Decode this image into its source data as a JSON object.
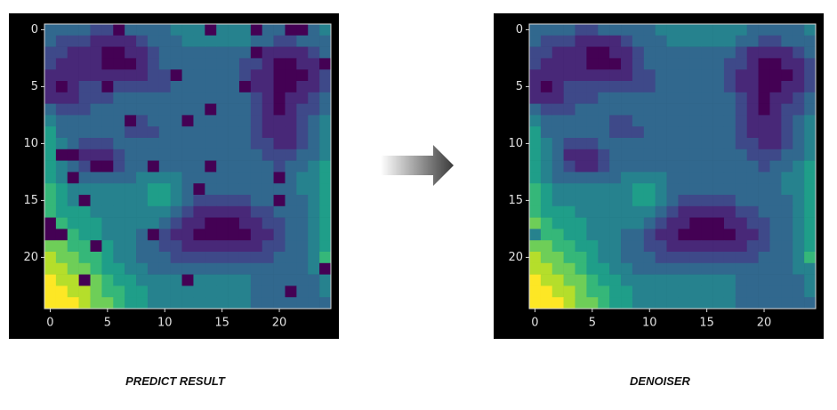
{
  "chart_data": [
    {
      "type": "heatmap",
      "caption": "PREDICT RESULT",
      "colormap": "viridis",
      "zlim": [
        0,
        9
      ],
      "xlim": [
        -0.5,
        24.5
      ],
      "ylim": [
        24.5,
        -0.5
      ],
      "xticks": [
        0,
        5,
        10,
        15,
        20
      ],
      "yticks": [
        0,
        5,
        10,
        15,
        20
      ],
      "z": [
        [
          3,
          3,
          3,
          3,
          2,
          2,
          0,
          3,
          3,
          3,
          3,
          4,
          4,
          4,
          0,
          4,
          4,
          4,
          0,
          3,
          3,
          0,
          0,
          3,
          4
        ],
        [
          3,
          2,
          2,
          2,
          1,
          1,
          1,
          1,
          2,
          3,
          3,
          3,
          4,
          4,
          4,
          4,
          4,
          4,
          3,
          3,
          2,
          2,
          3,
          3,
          3
        ],
        [
          2,
          2,
          1,
          1,
          1,
          0,
          0,
          1,
          1,
          2,
          3,
          3,
          3,
          3,
          3,
          3,
          3,
          3,
          0,
          1,
          1,
          1,
          1,
          2,
          3
        ],
        [
          2,
          1,
          1,
          1,
          1,
          0,
          0,
          0,
          1,
          2,
          3,
          3,
          3,
          3,
          3,
          3,
          3,
          2,
          2,
          1,
          0,
          0,
          1,
          1,
          0
        ],
        [
          1,
          1,
          1,
          1,
          1,
          1,
          1,
          1,
          1,
          2,
          2,
          0,
          3,
          3,
          3,
          3,
          3,
          2,
          1,
          1,
          0,
          0,
          0,
          1,
          2
        ],
        [
          1,
          0,
          1,
          2,
          2,
          0,
          2,
          2,
          2,
          2,
          2,
          3,
          3,
          3,
          3,
          3,
          3,
          0,
          1,
          1,
          0,
          0,
          1,
          1,
          2
        ],
        [
          1,
          1,
          1,
          2,
          2,
          2,
          3,
          3,
          3,
          3,
          3,
          3,
          3,
          3,
          3,
          3,
          3,
          3,
          2,
          1,
          0,
          1,
          1,
          2,
          3
        ],
        [
          3,
          2,
          2,
          2,
          3,
          3,
          3,
          3,
          3,
          3,
          3,
          3,
          3,
          3,
          0,
          3,
          3,
          3,
          2,
          1,
          0,
          1,
          2,
          2,
          3
        ],
        [
          4,
          3,
          3,
          3,
          3,
          3,
          3,
          0,
          2,
          3,
          3,
          3,
          0,
          3,
          3,
          3,
          3,
          3,
          2,
          1,
          1,
          1,
          2,
          3,
          4
        ],
        [
          5,
          3,
          3,
          3,
          3,
          3,
          3,
          2,
          2,
          2,
          3,
          3,
          3,
          3,
          3,
          3,
          3,
          3,
          2,
          1,
          1,
          1,
          2,
          3,
          4
        ],
        [
          5,
          4,
          3,
          2,
          2,
          2,
          3,
          3,
          3,
          3,
          3,
          3,
          3,
          3,
          3,
          3,
          3,
          3,
          2,
          2,
          1,
          1,
          2,
          3,
          4
        ],
        [
          5,
          0,
          0,
          1,
          1,
          1,
          2,
          3,
          3,
          3,
          3,
          3,
          3,
          3,
          3,
          3,
          3,
          3,
          3,
          2,
          2,
          2,
          3,
          3,
          4
        ],
        [
          5,
          4,
          3,
          2,
          0,
          0,
          2,
          3,
          3,
          0,
          3,
          3,
          3,
          3,
          0,
          3,
          3,
          3,
          3,
          3,
          2,
          3,
          3,
          4,
          5
        ],
        [
          5,
          4,
          0,
          3,
          3,
          3,
          3,
          3,
          4,
          4,
          4,
          4,
          3,
          3,
          3,
          3,
          3,
          3,
          3,
          3,
          0,
          3,
          4,
          4,
          5
        ],
        [
          6,
          5,
          4,
          4,
          4,
          4,
          4,
          4,
          4,
          5,
          5,
          4,
          3,
          0,
          3,
          3,
          3,
          3,
          3,
          3,
          3,
          3,
          4,
          4,
          5
        ],
        [
          6,
          5,
          4,
          0,
          4,
          4,
          4,
          4,
          4,
          5,
          5,
          4,
          3,
          2,
          2,
          2,
          2,
          2,
          3,
          3,
          0,
          3,
          3,
          4,
          5
        ],
        [
          6,
          5,
          5,
          5,
          4,
          4,
          4,
          4,
          4,
          4,
          4,
          3,
          2,
          1,
          1,
          1,
          1,
          1,
          2,
          2,
          3,
          3,
          3,
          4,
          5
        ],
        [
          0,
          6,
          5,
          5,
          5,
          4,
          4,
          4,
          4,
          4,
          3,
          2,
          1,
          1,
          0,
          0,
          0,
          1,
          1,
          2,
          2,
          3,
          3,
          4,
          5
        ],
        [
          0,
          0,
          6,
          5,
          5,
          4,
          4,
          4,
          3,
          0,
          2,
          1,
          1,
          0,
          0,
          0,
          0,
          0,
          1,
          1,
          2,
          3,
          3,
          4,
          5
        ],
        [
          7,
          7,
          6,
          6,
          0,
          5,
          4,
          4,
          3,
          3,
          2,
          2,
          1,
          1,
          1,
          1,
          1,
          1,
          1,
          2,
          2,
          3,
          3,
          4,
          5
        ],
        [
          8,
          7,
          7,
          6,
          6,
          5,
          4,
          4,
          3,
          3,
          3,
          2,
          2,
          2,
          2,
          2,
          2,
          2,
          2,
          2,
          3,
          3,
          3,
          4,
          6
        ],
        [
          8,
          8,
          7,
          7,
          6,
          5,
          5,
          4,
          4,
          3,
          3,
          3,
          3,
          3,
          3,
          3,
          3,
          3,
          3,
          3,
          3,
          3,
          3,
          4,
          0
        ],
        [
          9,
          8,
          8,
          0,
          7,
          6,
          5,
          5,
          4,
          4,
          4,
          4,
          0,
          4,
          4,
          4,
          4,
          4,
          3,
          3,
          3,
          3,
          3,
          3,
          4
        ],
        [
          9,
          9,
          8,
          8,
          7,
          6,
          6,
          5,
          5,
          4,
          4,
          4,
          4,
          4,
          4,
          4,
          4,
          4,
          3,
          3,
          3,
          0,
          3,
          3,
          4
        ],
        [
          9,
          9,
          9,
          8,
          7,
          7,
          6,
          5,
          5,
          4,
          4,
          4,
          4,
          4,
          4,
          4,
          4,
          4,
          3,
          3,
          3,
          3,
          3,
          3,
          3
        ]
      ]
    },
    {
      "type": "heatmap",
      "caption": "DENOISER",
      "colormap": "viridis",
      "zlim": [
        0,
        9
      ],
      "xlim": [
        -0.5,
        24.5
      ],
      "ylim": [
        24.5,
        -0.5
      ],
      "xticks": [
        0,
        5,
        10,
        15,
        20
      ],
      "yticks": [
        0,
        5,
        10,
        15,
        20
      ],
      "z": [
        [
          3,
          3,
          3,
          3,
          2,
          2,
          3,
          3,
          3,
          3,
          3,
          4,
          4,
          4,
          4,
          4,
          4,
          4,
          4,
          3,
          3,
          3,
          3,
          3,
          4
        ],
        [
          3,
          2,
          2,
          2,
          1,
          1,
          1,
          1,
          2,
          3,
          3,
          3,
          4,
          4,
          4,
          4,
          4,
          4,
          3,
          3,
          2,
          2,
          3,
          3,
          3
        ],
        [
          2,
          2,
          1,
          1,
          1,
          0,
          0,
          1,
          1,
          2,
          3,
          3,
          3,
          3,
          3,
          3,
          3,
          3,
          2,
          1,
          1,
          1,
          1,
          2,
          3
        ],
        [
          2,
          1,
          1,
          1,
          1,
          0,
          0,
          0,
          1,
          2,
          3,
          3,
          3,
          3,
          3,
          3,
          3,
          2,
          2,
          1,
          0,
          0,
          1,
          1,
          2
        ],
        [
          1,
          1,
          1,
          1,
          1,
          1,
          1,
          1,
          1,
          2,
          2,
          3,
          3,
          3,
          3,
          3,
          3,
          2,
          1,
          1,
          0,
          0,
          0,
          1,
          2
        ],
        [
          1,
          0,
          1,
          2,
          2,
          2,
          2,
          2,
          2,
          2,
          2,
          3,
          3,
          3,
          3,
          3,
          3,
          2,
          1,
          1,
          0,
          0,
          1,
          1,
          2
        ],
        [
          1,
          1,
          1,
          2,
          2,
          2,
          3,
          3,
          3,
          3,
          3,
          3,
          3,
          3,
          3,
          3,
          3,
          3,
          2,
          1,
          0,
          1,
          1,
          2,
          3
        ],
        [
          3,
          2,
          2,
          2,
          3,
          3,
          3,
          3,
          3,
          3,
          3,
          3,
          3,
          3,
          3,
          3,
          3,
          3,
          2,
          1,
          0,
          1,
          2,
          2,
          3
        ],
        [
          4,
          3,
          3,
          3,
          3,
          3,
          3,
          2,
          2,
          3,
          3,
          3,
          3,
          3,
          3,
          3,
          3,
          3,
          2,
          1,
          1,
          1,
          2,
          3,
          4
        ],
        [
          5,
          3,
          3,
          3,
          3,
          3,
          3,
          2,
          2,
          2,
          3,
          3,
          3,
          3,
          3,
          3,
          3,
          3,
          2,
          1,
          1,
          1,
          2,
          3,
          4
        ],
        [
          5,
          4,
          3,
          2,
          2,
          2,
          3,
          3,
          3,
          3,
          3,
          3,
          3,
          3,
          3,
          3,
          3,
          3,
          2,
          2,
          1,
          1,
          2,
          3,
          4
        ],
        [
          5,
          4,
          3,
          1,
          1,
          1,
          2,
          3,
          3,
          3,
          3,
          3,
          3,
          3,
          3,
          3,
          3,
          3,
          3,
          2,
          2,
          2,
          3,
          3,
          4
        ],
        [
          5,
          4,
          3,
          2,
          1,
          1,
          2,
          3,
          3,
          3,
          3,
          3,
          3,
          3,
          3,
          3,
          3,
          3,
          3,
          3,
          2,
          3,
          3,
          4,
          5
        ],
        [
          5,
          4,
          3,
          3,
          3,
          3,
          3,
          3,
          4,
          4,
          4,
          4,
          3,
          3,
          3,
          3,
          3,
          3,
          3,
          3,
          3,
          3,
          4,
          4,
          5
        ],
        [
          6,
          5,
          4,
          4,
          4,
          4,
          4,
          4,
          4,
          5,
          5,
          4,
          3,
          3,
          3,
          3,
          3,
          3,
          3,
          3,
          3,
          3,
          4,
          4,
          5
        ],
        [
          6,
          5,
          4,
          4,
          4,
          4,
          4,
          4,
          4,
          5,
          5,
          4,
          3,
          2,
          2,
          2,
          2,
          2,
          3,
          3,
          3,
          3,
          3,
          4,
          5
        ],
        [
          6,
          5,
          5,
          5,
          4,
          4,
          4,
          4,
          4,
          4,
          4,
          3,
          2,
          1,
          1,
          1,
          1,
          1,
          2,
          2,
          3,
          3,
          3,
          4,
          5
        ],
        [
          7,
          6,
          5,
          5,
          5,
          4,
          4,
          4,
          4,
          4,
          3,
          2,
          1,
          1,
          0,
          0,
          0,
          1,
          1,
          2,
          2,
          3,
          3,
          4,
          5
        ],
        [
          4,
          6,
          6,
          5,
          5,
          4,
          4,
          4,
          3,
          3,
          2,
          1,
          1,
          0,
          0,
          0,
          0,
          0,
          1,
          1,
          2,
          3,
          3,
          4,
          5
        ],
        [
          7,
          7,
          6,
          6,
          5,
          5,
          4,
          4,
          3,
          3,
          2,
          2,
          1,
          1,
          1,
          1,
          1,
          1,
          1,
          2,
          2,
          3,
          3,
          4,
          5
        ],
        [
          8,
          7,
          7,
          6,
          6,
          5,
          4,
          4,
          3,
          3,
          3,
          2,
          2,
          2,
          2,
          2,
          2,
          2,
          2,
          2,
          3,
          3,
          3,
          4,
          6
        ],
        [
          8,
          8,
          7,
          7,
          6,
          5,
          5,
          4,
          4,
          3,
          3,
          3,
          3,
          3,
          3,
          3,
          3,
          3,
          3,
          3,
          3,
          3,
          3,
          4,
          4
        ],
        [
          9,
          8,
          8,
          7,
          7,
          6,
          5,
          5,
          4,
          4,
          4,
          4,
          4,
          4,
          4,
          4,
          4,
          4,
          3,
          3,
          3,
          3,
          3,
          3,
          4
        ],
        [
          9,
          9,
          8,
          8,
          7,
          6,
          6,
          5,
          5,
          4,
          4,
          4,
          4,
          4,
          4,
          4,
          4,
          4,
          3,
          3,
          3,
          3,
          3,
          3,
          4
        ],
        [
          9,
          9,
          9,
          8,
          7,
          7,
          6,
          5,
          5,
          4,
          4,
          4,
          4,
          4,
          4,
          4,
          4,
          4,
          3,
          3,
          3,
          3,
          3,
          3,
          3
        ]
      ]
    }
  ]
}
